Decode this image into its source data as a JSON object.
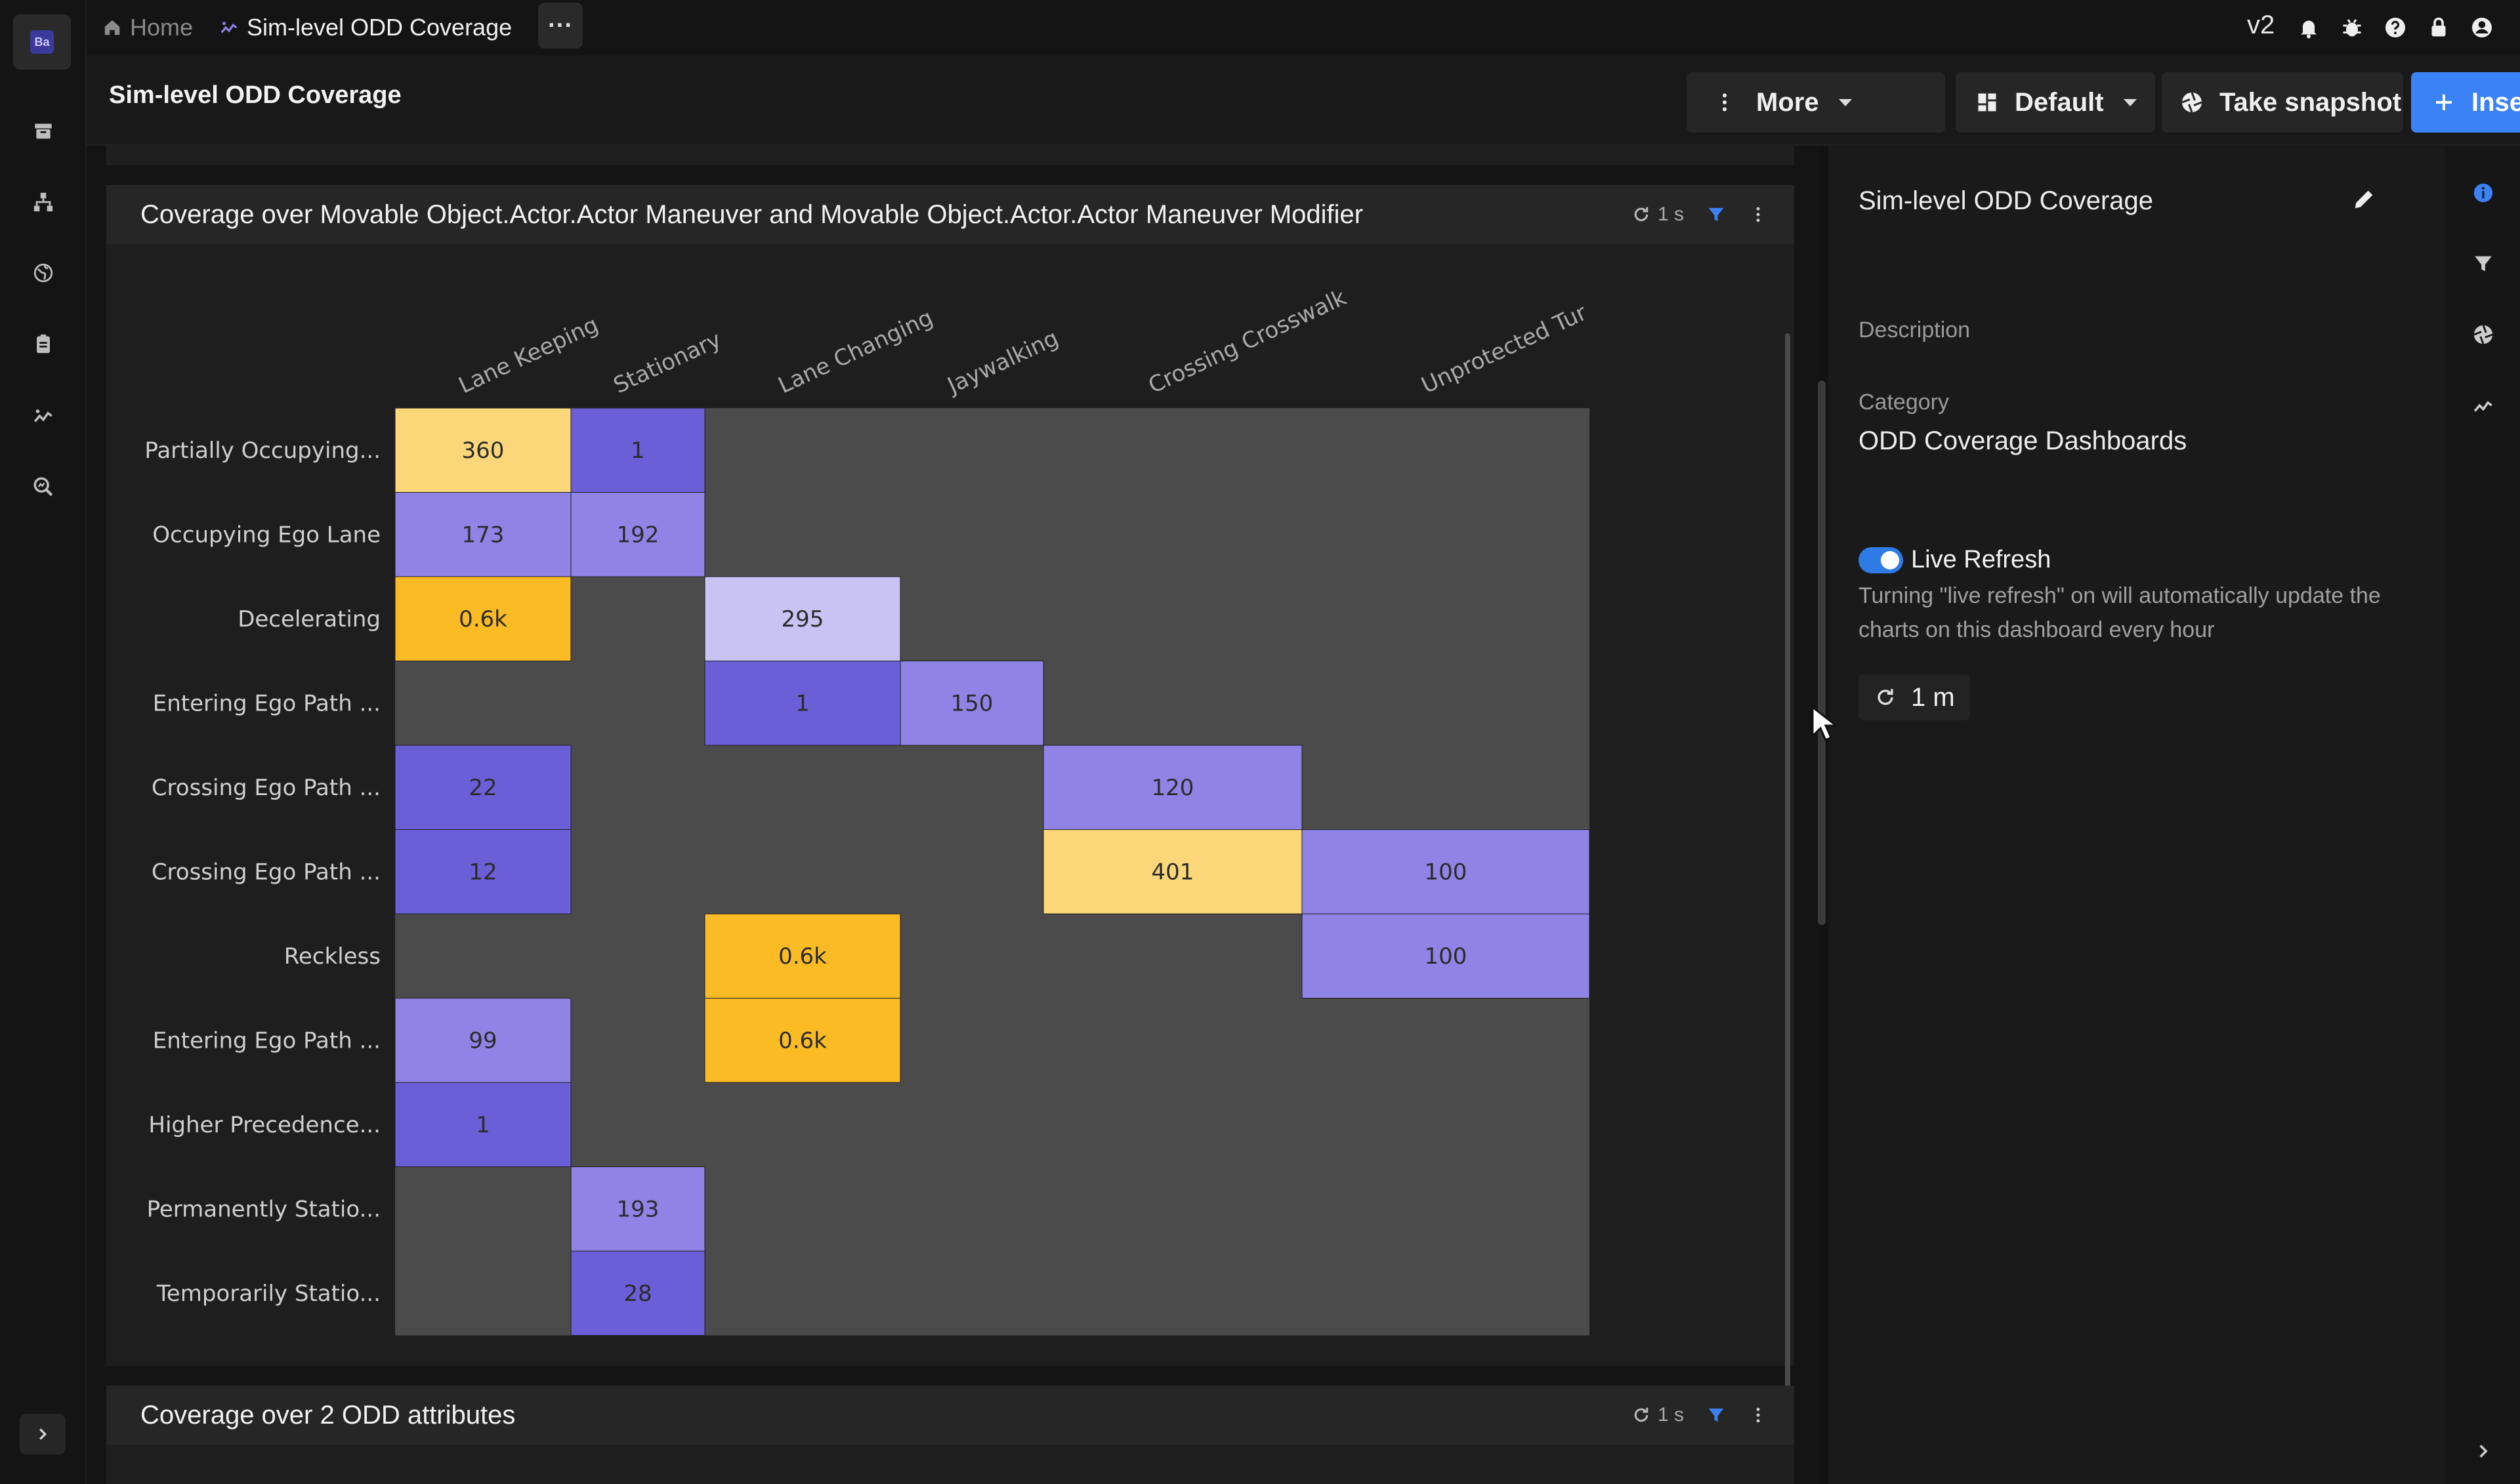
{
  "breadcrumb": {
    "home": "Home",
    "current": "Sim-level ODD Coverage",
    "more": "···"
  },
  "topbar": {
    "version": "v2"
  },
  "header": {
    "title": "Sim-level ODD Coverage",
    "more_label": "More",
    "layout_label": "Default",
    "snapshot_label": "Take snapshot",
    "insert_label": "Insert"
  },
  "panels": {
    "main_title": "Coverage over Movable Object.Actor.Actor Maneuver and Movable Object.Actor.Actor Maneuver Modifier",
    "main_refresh": "1 s",
    "second_title": "Coverage over 2 ODD attributes",
    "second_refresh": "1 s"
  },
  "chart_data": {
    "type": "heatmap",
    "columns": [
      "Lane Keeping",
      "Stationary",
      "Lane Changing",
      "Jaywalking",
      "Crossing Crosswalk",
      "Unprotected Tur"
    ],
    "rows": [
      "Partially Occupying...",
      "Occupying Ego Lane",
      "Decelerating",
      "Entering Ego Path ...",
      "Crossing Ego Path ...",
      "Crossing Ego Path ...",
      "Reckless",
      "Entering Ego Path ...",
      "Higher Precedence...",
      "Permanently Statio...",
      "Temporarily Statio..."
    ],
    "cells": [
      {
        "row": 0,
        "col": 0,
        "label": "360",
        "value": 360
      },
      {
        "row": 0,
        "col": 1,
        "label": "1",
        "value": 1
      },
      {
        "row": 1,
        "col": 0,
        "label": "173",
        "value": 173
      },
      {
        "row": 1,
        "col": 1,
        "label": "192",
        "value": 192
      },
      {
        "row": 2,
        "col": 0,
        "label": "0.6k",
        "value": 600
      },
      {
        "row": 2,
        "col": 2,
        "label": "295",
        "value": 295
      },
      {
        "row": 3,
        "col": 2,
        "label": "1",
        "value": 1
      },
      {
        "row": 3,
        "col": 3,
        "label": "150",
        "value": 150
      },
      {
        "row": 4,
        "col": 0,
        "label": "22",
        "value": 22
      },
      {
        "row": 4,
        "col": 4,
        "label": "120",
        "value": 120
      },
      {
        "row": 5,
        "col": 0,
        "label": "12",
        "value": 12
      },
      {
        "row": 5,
        "col": 4,
        "label": "401",
        "value": 401
      },
      {
        "row": 5,
        "col": 5,
        "label": "100",
        "value": 100
      },
      {
        "row": 6,
        "col": 2,
        "label": "0.6k",
        "value": 600
      },
      {
        "row": 6,
        "col": 5,
        "label": "100",
        "value": 100
      },
      {
        "row": 7,
        "col": 0,
        "label": "99",
        "value": 99
      },
      {
        "row": 7,
        "col": 2,
        "label": "0.6k",
        "value": 600
      },
      {
        "row": 8,
        "col": 0,
        "label": "1",
        "value": 1
      },
      {
        "row": 9,
        "col": 1,
        "label": "193",
        "value": 193
      },
      {
        "row": 10,
        "col": 1,
        "label": "28",
        "value": 28
      }
    ],
    "colors": {
      "empty": "#4b4b4b",
      "low": "#6b5fd8",
      "mid": "#8f84e6",
      "light": "#c9c3f3",
      "pale_yellow": "#fcd77a",
      "yellow": "#fbbb24"
    }
  },
  "sidebar": {
    "title": "Sim-level ODD Coverage",
    "description_label": "Description",
    "category_label": "Category",
    "category_value": "ODD Coverage Dashboards",
    "live_refresh_label": "Live Refresh",
    "live_refresh_on": true,
    "live_refresh_desc": "Turning \"live refresh\" on will automatically update the charts on this dashboard every hour",
    "refresh_interval": "1 m"
  },
  "icons": {
    "accent": "#3b82f6"
  }
}
